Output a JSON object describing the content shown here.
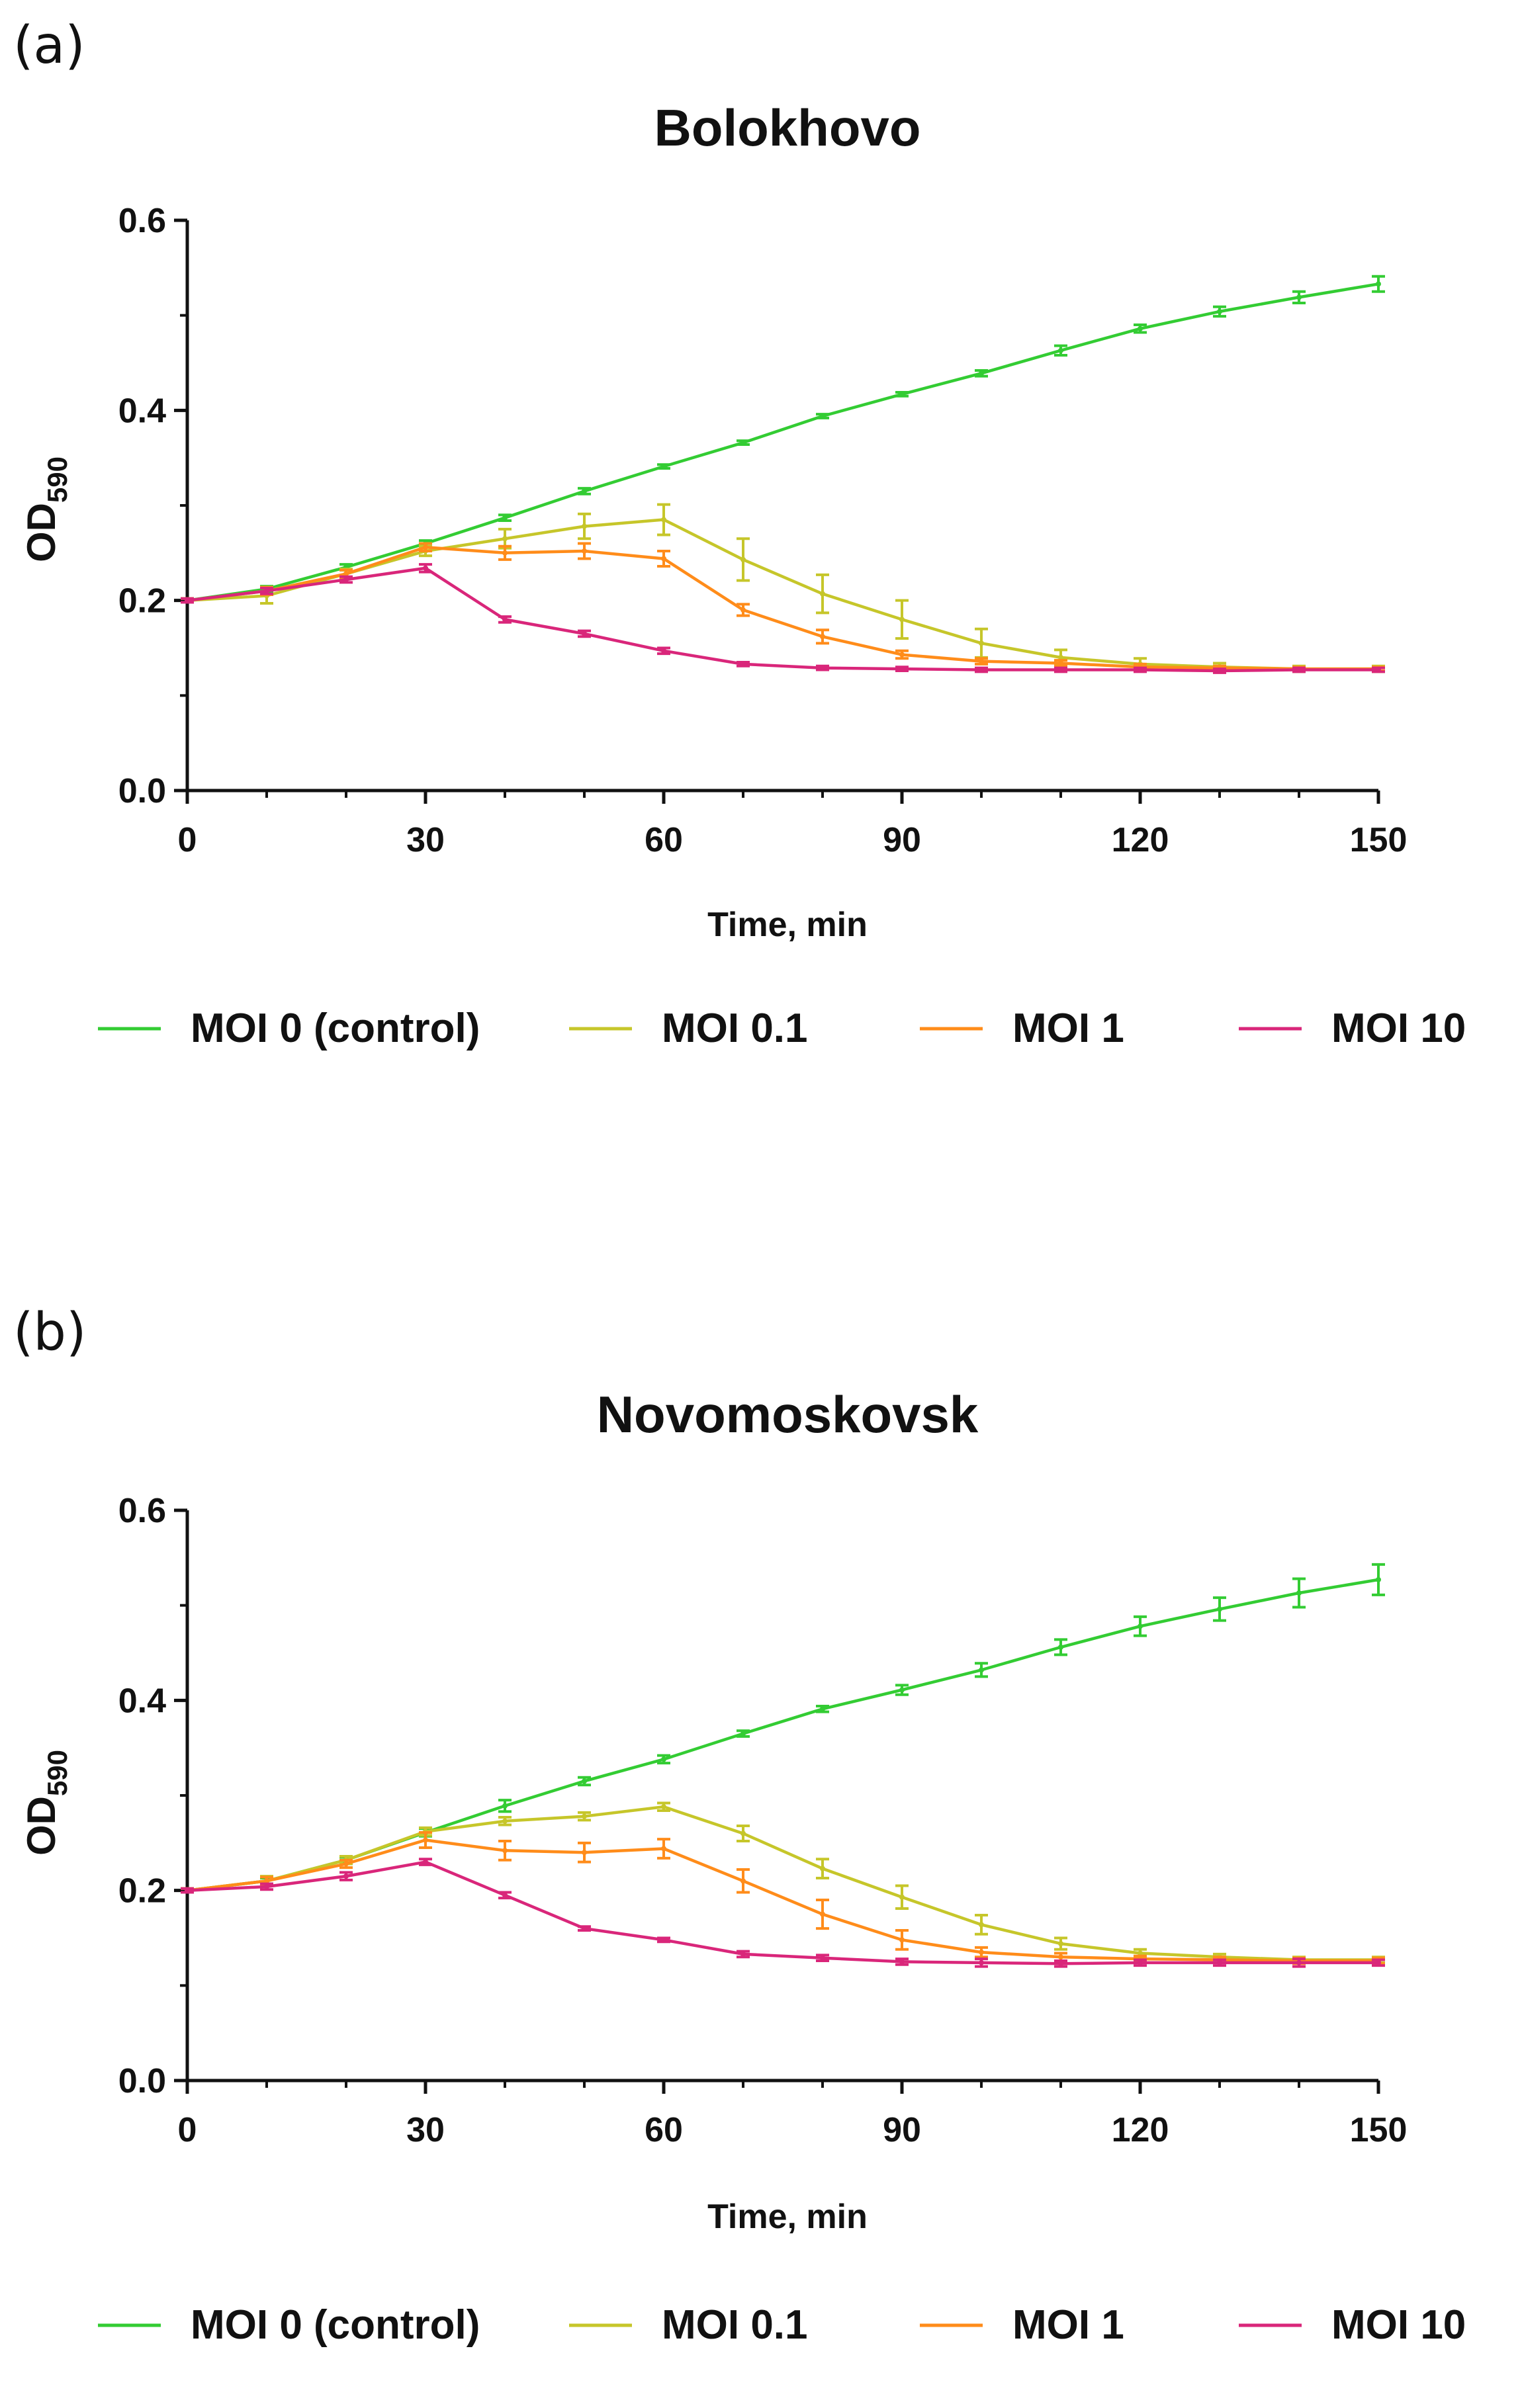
{
  "chart_data": [
    {
      "panel_label": "(a)",
      "type": "line",
      "title": "Bolokhovo",
      "xlabel": "Time, min",
      "ylabel": "OD",
      "ylabel_sub": "590",
      "xlim": [
        0,
        150
      ],
      "ylim": [
        0.0,
        0.6
      ],
      "xticks": [
        "0",
        "30",
        "60",
        "90",
        "120",
        "150"
      ],
      "yticks": [
        "0.0",
        "0.2",
        "0.4",
        "0.6"
      ],
      "grid": false,
      "legend_position": "bottom",
      "x": [
        0,
        10,
        20,
        30,
        40,
        50,
        60,
        70,
        80,
        90,
        100,
        110,
        120,
        130,
        140,
        150
      ],
      "series": [
        {
          "name": "MOI 0 (control)",
          "color": "#33cc33",
          "values": [
            0.2,
            0.212,
            0.235,
            0.26,
            0.287,
            0.315,
            0.341,
            0.366,
            0.394,
            0.417,
            0.439,
            0.463,
            0.486,
            0.504,
            0.519,
            0.533
          ],
          "errors": [
            0.002,
            0.003,
            0.003,
            0.003,
            0.003,
            0.003,
            0.002,
            0.002,
            0.002,
            0.002,
            0.003,
            0.005,
            0.004,
            0.005,
            0.006,
            0.008
          ]
        },
        {
          "name": "MOI 0.1",
          "color": "#c6c62a",
          "values": [
            0.2,
            0.205,
            0.228,
            0.252,
            0.265,
            0.278,
            0.285,
            0.243,
            0.207,
            0.18,
            0.155,
            0.14,
            0.133,
            0.13,
            0.128,
            0.128
          ],
          "errors": [
            0.002,
            0.008,
            0.005,
            0.005,
            0.01,
            0.013,
            0.016,
            0.022,
            0.02,
            0.02,
            0.015,
            0.008,
            0.006,
            0.004,
            0.003,
            0.003
          ]
        },
        {
          "name": "MOI 1",
          "color": "#ff8c1a",
          "values": [
            0.2,
            0.21,
            0.228,
            0.256,
            0.25,
            0.252,
            0.244,
            0.19,
            0.162,
            0.143,
            0.136,
            0.134,
            0.13,
            0.129,
            0.128,
            0.128
          ],
          "errors": [
            0.002,
            0.004,
            0.004,
            0.004,
            0.007,
            0.008,
            0.008,
            0.006,
            0.007,
            0.004,
            0.003,
            0.003,
            0.003,
            0.002,
            0.002,
            0.002
          ]
        },
        {
          "name": "MOI 10",
          "color": "#d9267a",
          "values": [
            0.2,
            0.21,
            0.222,
            0.234,
            0.18,
            0.165,
            0.147,
            0.133,
            0.129,
            0.128,
            0.127,
            0.127,
            0.127,
            0.126,
            0.127,
            0.127
          ],
          "errors": [
            0.002,
            0.003,
            0.003,
            0.004,
            0.003,
            0.003,
            0.003,
            0.002,
            0.002,
            0.002,
            0.002,
            0.002,
            0.002,
            0.002,
            0.002,
            0.002
          ]
        }
      ]
    },
    {
      "panel_label": "(b)",
      "type": "line",
      "title": "Novomoskovsk",
      "xlabel": "Time, min",
      "ylabel": "OD",
      "ylabel_sub": "590",
      "xlim": [
        0,
        150
      ],
      "ylim": [
        0.0,
        0.6
      ],
      "xticks": [
        "0",
        "30",
        "60",
        "90",
        "120",
        "150"
      ],
      "yticks": [
        "0.0",
        "0.2",
        "0.4",
        "0.6"
      ],
      "grid": false,
      "legend_position": "bottom",
      "x": [
        0,
        10,
        20,
        30,
        40,
        50,
        60,
        70,
        80,
        90,
        100,
        110,
        120,
        130,
        140,
        150
      ],
      "series": [
        {
          "name": "MOI 0 (control)",
          "color": "#33cc33",
          "values": [
            0.2,
            0.21,
            0.232,
            0.261,
            0.289,
            0.315,
            0.338,
            0.365,
            0.391,
            0.411,
            0.432,
            0.456,
            0.478,
            0.496,
            0.513,
            0.527
          ],
          "errors": [
            0.002,
            0.003,
            0.003,
            0.004,
            0.006,
            0.004,
            0.004,
            0.003,
            0.003,
            0.005,
            0.007,
            0.008,
            0.01,
            0.012,
            0.015,
            0.016
          ]
        },
        {
          "name": "MOI 0.1",
          "color": "#c6c62a",
          "values": [
            0.2,
            0.21,
            0.232,
            0.262,
            0.273,
            0.278,
            0.288,
            0.26,
            0.223,
            0.193,
            0.164,
            0.144,
            0.134,
            0.13,
            0.127,
            0.127
          ],
          "errors": [
            0.002,
            0.005,
            0.004,
            0.004,
            0.004,
            0.004,
            0.004,
            0.008,
            0.01,
            0.012,
            0.01,
            0.006,
            0.004,
            0.003,
            0.003,
            0.003
          ]
        },
        {
          "name": "MOI 1",
          "color": "#ff8c1a",
          "values": [
            0.2,
            0.21,
            0.228,
            0.253,
            0.242,
            0.24,
            0.244,
            0.21,
            0.175,
            0.148,
            0.135,
            0.13,
            0.128,
            0.127,
            0.126,
            0.126
          ],
          "errors": [
            0.002,
            0.004,
            0.004,
            0.008,
            0.01,
            0.01,
            0.01,
            0.012,
            0.015,
            0.01,
            0.005,
            0.004,
            0.003,
            0.003,
            0.003,
            0.003
          ]
        },
        {
          "name": "MOI 10",
          "color": "#d9267a",
          "values": [
            0.2,
            0.204,
            0.215,
            0.23,
            0.195,
            0.16,
            0.148,
            0.133,
            0.129,
            0.125,
            0.124,
            0.123,
            0.124,
            0.124,
            0.124,
            0.124
          ],
          "errors": [
            0.002,
            0.003,
            0.004,
            0.003,
            0.003,
            0.002,
            0.002,
            0.003,
            0.003,
            0.003,
            0.004,
            0.003,
            0.003,
            0.003,
            0.004,
            0.003
          ]
        }
      ]
    }
  ]
}
